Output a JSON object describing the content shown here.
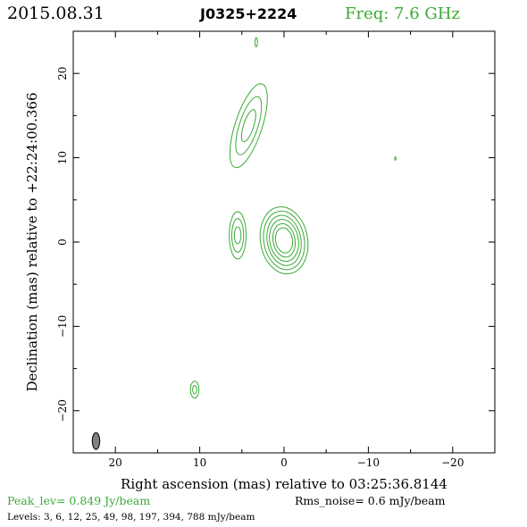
{
  "header": {
    "date": "2015.08.31",
    "source": "J0325+2224",
    "freq": "Freq: 7.6 GHz"
  },
  "footer": {
    "peak": "Peak_lev=  0.849 Jy/beam",
    "rms": "Rms_noise=  0.6 mJy/beam",
    "levels": "Levels:  3,  6,  12,  25,  49,  98,  197,  394,  788 mJy/beam"
  },
  "colors": {
    "contour": "#3aaa35",
    "beam": "#808080",
    "text": "#000000"
  },
  "chart_data": {
    "type": "contour",
    "title": "J0325+2224",
    "xlabel": "Right ascension (mas) relative to 03:25:36.8144",
    "ylabel": "Declination (mas) relative to +22:24:00.366",
    "xlim": [
      25,
      -25
    ],
    "ylim": [
      -25,
      25
    ],
    "xticks": [
      20,
      10,
      0,
      -10,
      -20
    ],
    "yticks": [
      20,
      10,
      0,
      -10,
      -20
    ],
    "xtick_labels": [
      "20",
      "10",
      "0",
      "−10",
      "−20"
    ],
    "ytick_labels": [
      "20",
      "10",
      "0",
      "−10",
      "−20"
    ],
    "contour_levels_mJy": [
      3,
      6,
      12,
      25,
      49,
      98,
      197,
      394,
      788
    ],
    "components": [
      {
        "name": "core",
        "x": 0.0,
        "y": 0.2,
        "rx": [
          1.0,
          1.3,
          1.7,
          2.0,
          2.4,
          2.8
        ],
        "ry": [
          1.5,
          2.0,
          2.5,
          3.0,
          3.5,
          4.0
        ],
        "angle": -10
      },
      {
        "name": "knot-east",
        "x": 5.5,
        "y": 0.8,
        "rx": [
          0.4,
          0.7,
          1.0
        ],
        "ry": [
          1.0,
          2.0,
          2.8
        ],
        "angle": 0
      },
      {
        "name": "jet-north",
        "x": 4.2,
        "y": 13.8,
        "rx": [
          0.6,
          1.1,
          1.6
        ],
        "ry": [
          2.0,
          3.6,
          5.2
        ],
        "angle": 18
      },
      {
        "name": "knot-south",
        "x": 10.6,
        "y": -17.5,
        "rx": [
          0.25,
          0.5
        ],
        "ry": [
          0.5,
          1.0
        ],
        "angle": 0
      },
      {
        "name": "speck-top",
        "x": 3.3,
        "y": 23.7,
        "rx": [
          0.15
        ],
        "ry": [
          0.55
        ],
        "angle": 0
      },
      {
        "name": "speck-right",
        "x": -13.2,
        "y": 9.9,
        "rx": [
          0.08
        ],
        "ry": [
          0.2
        ],
        "angle": 0
      }
    ],
    "beam": {
      "x": 22.3,
      "y": -23.6,
      "major_mas": 2.0,
      "minor_mas": 0.9,
      "pa_deg": 0
    }
  }
}
